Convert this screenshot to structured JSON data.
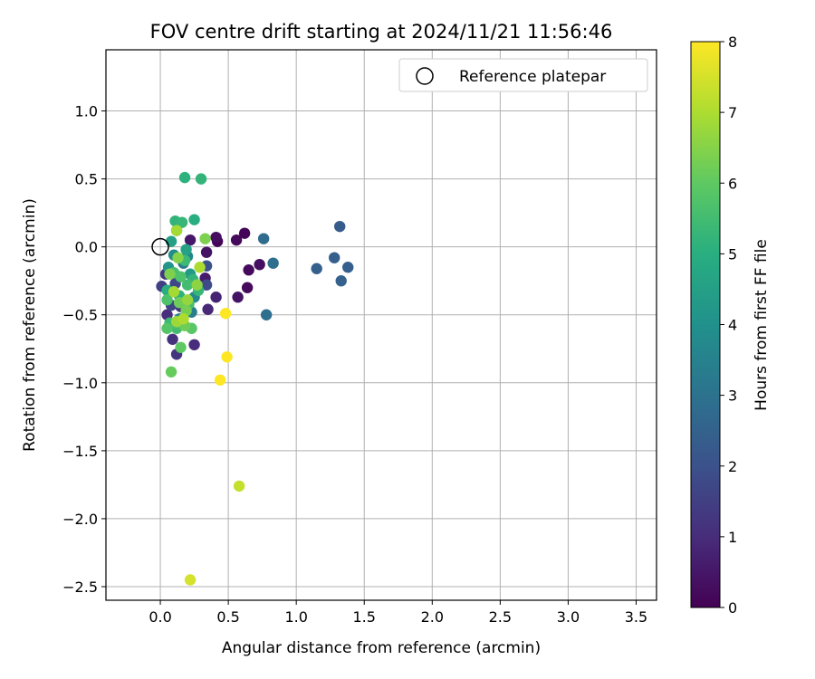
{
  "chart_data": {
    "type": "scatter",
    "title": "FOV centre drift starting at 2024/11/21 11:56:46",
    "xlabel": "Angular distance from reference (arcmin)",
    "ylabel": "Rotation from reference (arcmin)",
    "xlim": [
      -0.4,
      3.65
    ],
    "ylim": [
      -2.6,
      1.45
    ],
    "xticks": [
      0.0,
      0.5,
      1.0,
      1.5,
      2.0,
      2.5,
      3.0,
      3.5
    ],
    "xtick_labels": [
      "0.0",
      "0.5",
      "1.0",
      "1.5",
      "2.0",
      "2.5",
      "3.0",
      "3.5"
    ],
    "yticks": [
      1.0,
      0.5,
      0.0,
      -0.5,
      -1.0,
      -1.5,
      -2.0,
      -2.5
    ],
    "ytick_labels": [
      "1.0",
      "0.5",
      "0.0",
      "−0.5",
      "−1.0",
      "−1.5",
      "−2.0",
      "−2.5"
    ],
    "grid": true,
    "legend": {
      "position": "top-right",
      "entries": [
        "Reference platepar"
      ]
    },
    "reference_point": {
      "x": 0.0,
      "y": 0.0,
      "label": "Reference platepar"
    },
    "colorbar": {
      "label": "Hours from first FF file",
      "colormap": "viridis",
      "range": [
        0,
        8
      ],
      "ticks": [
        0,
        1,
        2,
        3,
        4,
        5,
        6,
        7,
        8
      ],
      "tick_labels": [
        "0",
        "1",
        "2",
        "3",
        "4",
        "5",
        "6",
        "7",
        "8"
      ]
    },
    "points": [
      {
        "x": 0.42,
        "y": 0.04,
        "c": 0.1
      },
      {
        "x": 0.56,
        "y": 0.05,
        "c": 0.2
      },
      {
        "x": 0.62,
        "y": 0.1,
        "c": 0.1
      },
      {
        "x": 0.65,
        "y": -0.17,
        "c": 0.2
      },
      {
        "x": 0.73,
        "y": -0.13,
        "c": 0.3
      },
      {
        "x": 0.64,
        "y": -0.3,
        "c": 0.2
      },
      {
        "x": 0.57,
        "y": -0.37,
        "c": 0.4
      },
      {
        "x": 0.41,
        "y": 0.07,
        "c": 0.3
      },
      {
        "x": 0.22,
        "y": 0.05,
        "c": 0.5
      },
      {
        "x": 0.34,
        "y": -0.04,
        "c": 0.4
      },
      {
        "x": 0.33,
        "y": -0.23,
        "c": 0.6
      },
      {
        "x": 0.41,
        "y": -0.37,
        "c": 0.8
      },
      {
        "x": 0.35,
        "y": -0.46,
        "c": 0.9
      },
      {
        "x": 0.25,
        "y": -0.72,
        "c": 1.0
      },
      {
        "x": 0.12,
        "y": -0.79,
        "c": 1.2
      },
      {
        "x": 0.09,
        "y": -0.68,
        "c": 1.1
      },
      {
        "x": 0.05,
        "y": -0.5,
        "c": 1.0
      },
      {
        "x": 0.01,
        "y": -0.29,
        "c": 1.5
      },
      {
        "x": 0.04,
        "y": -0.2,
        "c": 1.3
      },
      {
        "x": 0.15,
        "y": -0.44,
        "c": 1.3
      },
      {
        "x": 0.21,
        "y": -0.46,
        "c": 1.4
      },
      {
        "x": 0.34,
        "y": -0.14,
        "c": 2.0
      },
      {
        "x": 0.34,
        "y": -0.28,
        "c": 1.8
      },
      {
        "x": 0.11,
        "y": -0.27,
        "c": 1.7
      },
      {
        "x": 0.08,
        "y": -0.43,
        "c": 1.6
      },
      {
        "x": 1.32,
        "y": 0.15,
        "c": 2.3
      },
      {
        "x": 1.28,
        "y": -0.08,
        "c": 2.4
      },
      {
        "x": 1.15,
        "y": -0.16,
        "c": 2.4
      },
      {
        "x": 1.38,
        "y": -0.15,
        "c": 2.4
      },
      {
        "x": 1.33,
        "y": -0.25,
        "c": 2.5
      },
      {
        "x": 0.76,
        "y": 0.06,
        "c": 2.8
      },
      {
        "x": 0.83,
        "y": -0.12,
        "c": 2.9
      },
      {
        "x": 0.78,
        "y": -0.5,
        "c": 2.9
      },
      {
        "x": 0.17,
        "y": -0.12,
        "c": 3.3
      },
      {
        "x": 0.2,
        "y": -0.07,
        "c": 3.6
      },
      {
        "x": 0.23,
        "y": -0.48,
        "c": 3.4
      },
      {
        "x": 0.14,
        "y": -0.53,
        "c": 3.5
      },
      {
        "x": 0.25,
        "y": -0.37,
        "c": 3.7
      },
      {
        "x": 0.1,
        "y": -0.06,
        "c": 3.9
      },
      {
        "x": 0.06,
        "y": -0.15,
        "c": 4.1
      },
      {
        "x": 0.22,
        "y": -0.2,
        "c": 4.3
      },
      {
        "x": 0.12,
        "y": 0.12,
        "c": 4.3
      },
      {
        "x": 0.08,
        "y": 0.04,
        "c": 4.5
      },
      {
        "x": 0.19,
        "y": -0.02,
        "c": 4.6
      },
      {
        "x": 0.18,
        "y": 0.51,
        "c": 5.1
      },
      {
        "x": 0.3,
        "y": 0.5,
        "c": 5.2
      },
      {
        "x": 0.25,
        "y": 0.2,
        "c": 5.0
      },
      {
        "x": 0.11,
        "y": 0.19,
        "c": 5.2
      },
      {
        "x": 0.16,
        "y": 0.18,
        "c": 5.3
      },
      {
        "x": 0.05,
        "y": -0.32,
        "c": 5.0
      },
      {
        "x": 0.14,
        "y": -0.36,
        "c": 5.1
      },
      {
        "x": 0.24,
        "y": -0.24,
        "c": 5.2
      },
      {
        "x": 0.28,
        "y": -0.32,
        "c": 5.3
      },
      {
        "x": 0.18,
        "y": -0.1,
        "c": 5.4
      },
      {
        "x": 0.07,
        "y": -0.56,
        "c": 5.4
      },
      {
        "x": 0.12,
        "y": -0.6,
        "c": 5.5
      },
      {
        "x": 0.2,
        "y": -0.28,
        "c": 5.5
      },
      {
        "x": 0.1,
        "y": -0.19,
        "c": 5.6
      },
      {
        "x": 0.21,
        "y": -0.42,
        "c": 5.6
      },
      {
        "x": 0.05,
        "y": -0.39,
        "c": 5.7
      },
      {
        "x": 0.15,
        "y": -0.22,
        "c": 5.7
      },
      {
        "x": 0.05,
        "y": -0.6,
        "c": 5.8
      },
      {
        "x": 0.23,
        "y": -0.6,
        "c": 5.9
      },
      {
        "x": 0.15,
        "y": -0.74,
        "c": 6.0
      },
      {
        "x": 0.08,
        "y": -0.92,
        "c": 6.1
      },
      {
        "x": 0.18,
        "y": -0.58,
        "c": 6.2
      },
      {
        "x": 0.14,
        "y": -0.41,
        "c": 6.2
      },
      {
        "x": 0.07,
        "y": -0.2,
        "c": 6.4
      },
      {
        "x": 0.19,
        "y": -0.47,
        "c": 6.3
      },
      {
        "x": 0.33,
        "y": 0.06,
        "c": 6.4
      },
      {
        "x": 0.13,
        "y": -0.08,
        "c": 6.5
      },
      {
        "x": 0.27,
        "y": -0.28,
        "c": 6.6
      },
      {
        "x": 0.2,
        "y": -0.39,
        "c": 6.7
      },
      {
        "x": 0.12,
        "y": -0.55,
        "c": 6.8
      },
      {
        "x": 0.1,
        "y": -0.33,
        "c": 6.9
      },
      {
        "x": 0.17,
        "y": -0.53,
        "c": 7.0
      },
      {
        "x": 0.29,
        "y": -0.15,
        "c": 7.0
      },
      {
        "x": 0.12,
        "y": 0.12,
        "c": 6.9
      },
      {
        "x": 0.58,
        "y": -1.76,
        "c": 7.3
      },
      {
        "x": 0.22,
        "y": -2.45,
        "c": 7.5
      },
      {
        "x": 0.48,
        "y": -0.49,
        "c": 8.0
      },
      {
        "x": 0.49,
        "y": -0.81,
        "c": 8.0
      },
      {
        "x": 0.44,
        "y": -0.98,
        "c": 8.0
      }
    ]
  }
}
